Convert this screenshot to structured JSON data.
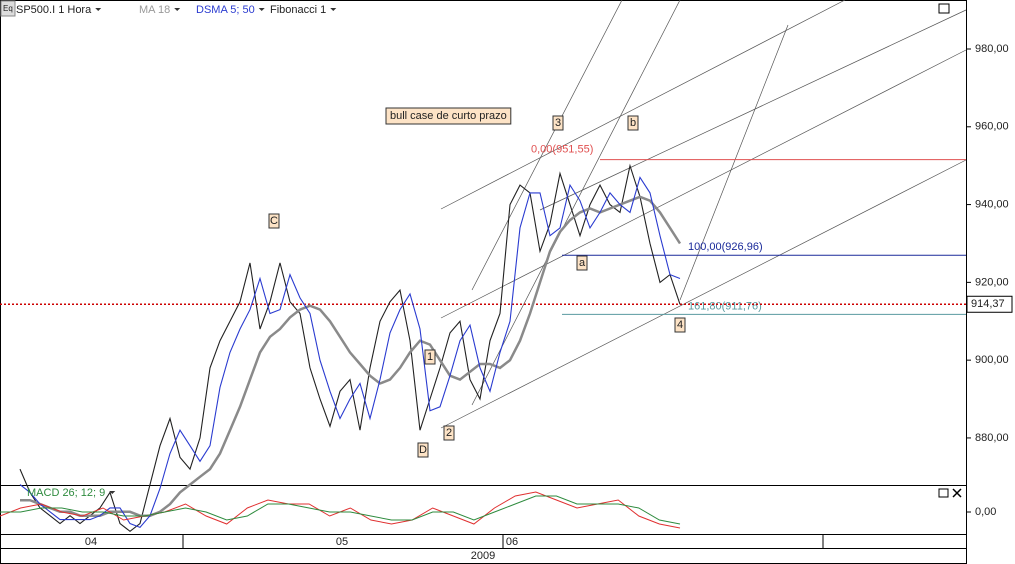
{
  "chart_data": [
    {
      "type": "line",
      "series": [
        {
          "name": "SP500.I 1 Hora",
          "color": "#222222",
          "values": [
            872,
            866,
            862,
            860,
            858,
            860,
            858,
            860,
            862,
            866,
            858,
            856,
            858,
            868,
            878,
            885,
            875,
            872,
            880,
            898,
            905,
            910,
            915,
            925,
            908,
            915,
            925,
            915,
            912,
            898,
            890,
            883,
            892,
            895,
            882,
            898,
            910,
            915,
            918,
            905,
            882,
            890,
            898,
            907,
            910,
            895,
            890,
            905,
            912,
            940,
            945,
            943,
            928,
            935,
            948,
            940,
            932,
            940,
            945,
            940,
            938,
            950,
            942,
            930,
            920,
            922,
            914.37
          ]
        },
        {
          "name": "MA 18",
          "color": "#8a8a8a",
          "values": [
            864,
            864,
            863,
            862,
            861,
            861,
            860,
            860,
            860,
            861,
            861,
            861,
            860,
            860,
            861,
            863,
            866,
            868,
            870,
            872,
            876,
            882,
            888,
            895,
            902,
            906,
            908,
            911,
            913,
            914,
            913,
            910,
            906,
            902,
            899,
            896,
            894,
            895,
            898,
            902,
            905,
            904,
            900,
            896,
            895,
            897,
            899,
            899,
            898,
            900,
            905,
            912,
            920,
            928,
            933,
            936,
            938,
            939,
            938,
            939,
            940,
            941,
            942,
            941,
            938,
            934,
            930
          ]
        },
        {
          "name": "DSMA 5; 50",
          "color": "#2a3bd0",
          "values": [
            868,
            866,
            863,
            861,
            859,
            859,
            859,
            859,
            860,
            862,
            862,
            858,
            857,
            860,
            867,
            876,
            882,
            878,
            874,
            878,
            893,
            902,
            908,
            913,
            921,
            912,
            913,
            922,
            916,
            912,
            900,
            892,
            885,
            890,
            894,
            885,
            895,
            907,
            913,
            917,
            908,
            887,
            888,
            896,
            905,
            909,
            898,
            892,
            902,
            910,
            934,
            943,
            943,
            932,
            934,
            945,
            941,
            934,
            938,
            943,
            940,
            938,
            947,
            943,
            932,
            922,
            921
          ]
        }
      ],
      "indicator": "Fibonacci 1",
      "ylim": [
        867.9,
        992.6
      ],
      "yticks": [
        {
          "value": 880,
          "label": "880,00"
        },
        {
          "value": 900,
          "label": "900,00"
        },
        {
          "value": 920,
          "label": "920,00"
        },
        {
          "value": 940,
          "label": "940,00"
        },
        {
          "value": 960,
          "label": "960,00"
        },
        {
          "value": 980,
          "label": "980,00"
        }
      ],
      "fib_levels": [
        {
          "value": 951.55,
          "label": "0,00(951,55)",
          "color": "#e05050"
        },
        {
          "value": 926.96,
          "label": "100,00(926,96)",
          "color": "#1a2a9a"
        },
        {
          "value": 911.76,
          "label": "161,80(911,76)",
          "color": "#5a9aa0"
        }
      ],
      "last_price": {
        "value": 914.37,
        "label": "914,37",
        "color": "#cc0000"
      },
      "note": "bull case de curto prazo",
      "wave_labels": [
        "C",
        "D",
        "1",
        "2",
        "3",
        "a",
        "b",
        "4"
      ],
      "x_labels": [
        "04",
        "05",
        "06"
      ],
      "year": "2009"
    },
    {
      "type": "line",
      "title": "MACD 26; 12; 9",
      "series": [
        {
          "color": "#e03030",
          "values": [
            -1,
            1,
            2,
            0,
            -1,
            1,
            -2,
            -1,
            0,
            2,
            -1,
            -3,
            1,
            3,
            2,
            2,
            -1,
            1,
            -2,
            -3,
            -2,
            1,
            -1,
            -3,
            1,
            4,
            5,
            3,
            1,
            2,
            3,
            -1,
            -3,
            -4
          ]
        },
        {
          "color": "#2e8b3e",
          "values": [
            0,
            0,
            1,
            1,
            0,
            0,
            -1,
            -1,
            0,
            1,
            0,
            -2,
            -1,
            2,
            2,
            1,
            0,
            0,
            -1,
            -2,
            -2,
            0,
            0,
            -2,
            0,
            2,
            4,
            4,
            2,
            2,
            2,
            1,
            -2,
            -3
          ]
        }
      ],
      "ylim": [
        -5,
        6
      ],
      "yticks": [
        {
          "value": 0,
          "label": "0,00"
        }
      ]
    }
  ]
}
